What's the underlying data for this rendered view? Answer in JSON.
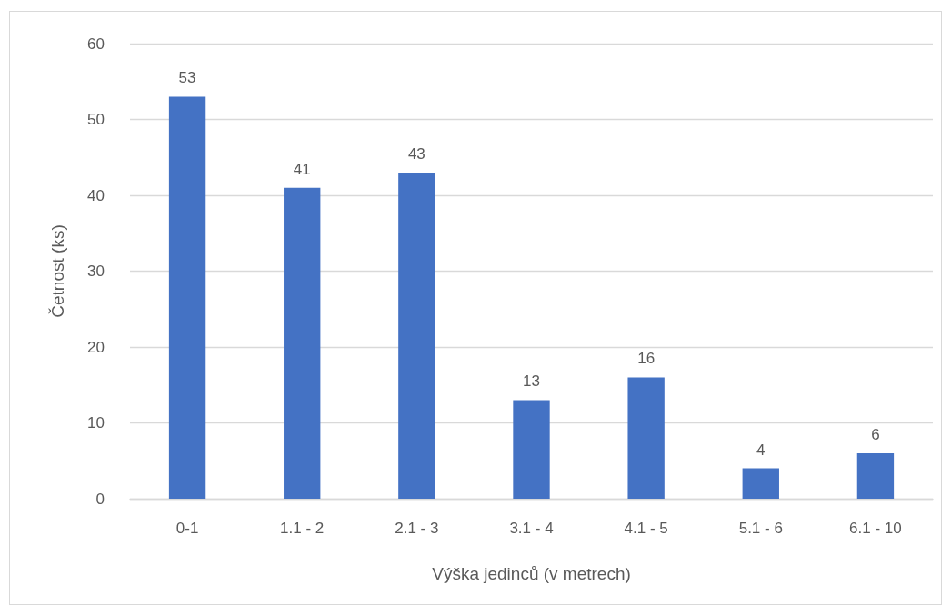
{
  "chart_data": {
    "type": "bar",
    "xlabel": "Výška jedinců (v metrech)",
    "ylabel": "Četnost (ks)",
    "categories": [
      "0-1",
      "1.1 - 2",
      "2.1 - 3",
      "3.1 - 4",
      "4.1 - 5",
      "5.1 - 6",
      "6.1 - 10"
    ],
    "values": [
      53,
      41,
      43,
      13,
      16,
      4,
      6
    ],
    "color": "#4472c4",
    "ylim": [
      0,
      60
    ],
    "yticks": [
      0,
      10,
      20,
      30,
      40,
      50,
      60
    ],
    "grid": "y",
    "data_labels": true
  }
}
